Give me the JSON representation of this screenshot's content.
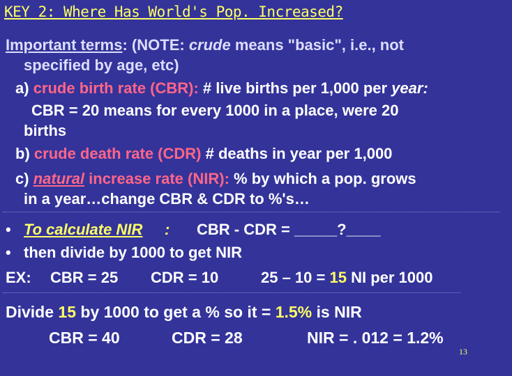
{
  "title": "KEY 2:  Where Has World's Pop. Increased?",
  "terms": {
    "heading": "Important terms",
    "colon": ":",
    "note_open": "  (NOTE:  ",
    "note_word": "crude",
    "note_rest": " means \"basic\", i.e., not",
    "note_line2": "specified by age, etc)"
  },
  "item_a": {
    "prefix": "a) ",
    "label": "crude birth rate (CBR):",
    "def": "  # live births per 1,000 per ",
    "def_ital": "year:",
    "line2": "CBR = 20 means for every 1000 in a place, were 20",
    "line3": "births"
  },
  "item_b": {
    "prefix": "b) ",
    "label": "crude death rate (CDR)",
    "def": " # deaths in year per 1,000"
  },
  "item_c": {
    "prefix": "c)  ",
    "label_word": "natural",
    "label_rest": " increase rate (NIR):",
    "def": "  % by which a pop. grows",
    "line2": "in a year…change CBR & CDR to %'s…"
  },
  "bullet1": {
    "bullet": "•",
    "label": "To calculate NIR",
    "colon": ":",
    "text": "CBR - CDR =  _____?____"
  },
  "bullet2": {
    "bullet": "•",
    "text": "then divide by 1000  to get  NIR"
  },
  "example": {
    "ex": "EX:",
    "cbr": "CBR = 25",
    "cdr": "CDR = 10",
    "calc_a": "25 – 10 = ",
    "calc_b": "15",
    "calc_c": "  NI per 1000"
  },
  "divide": {
    "a": "Divide ",
    "b": "15",
    "c": " by 1000 to get a %  so  it = ",
    "d": "1.5%",
    "e": " is NIR"
  },
  "final": {
    "cbr": "CBR = 40",
    "cdr": "CDR = 28",
    "nir": "NIR = . 012  = 1.2%"
  },
  "page_number": "13",
  "colors": {
    "background": "#33339a",
    "accent_yellow": "#ffff66",
    "accent_red": "#ff6688"
  }
}
